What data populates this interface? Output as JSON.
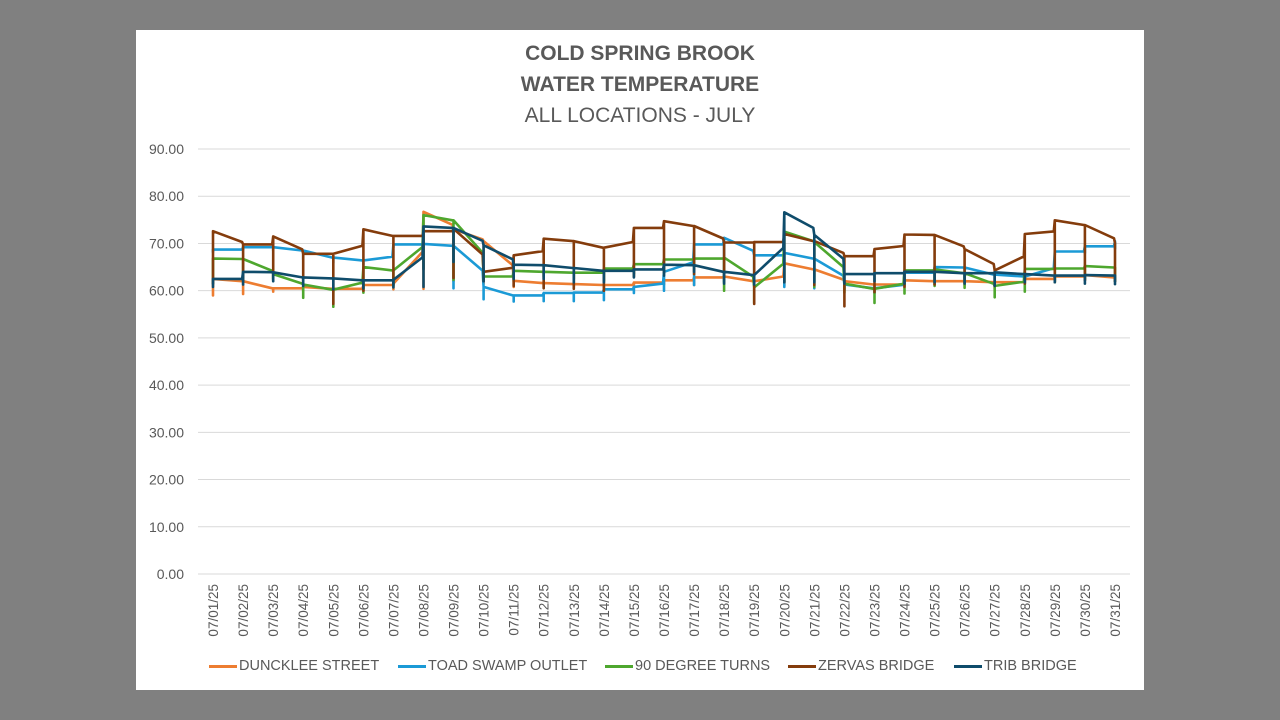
{
  "chart_data": {
    "type": "line",
    "title": "COLD SPRING BROOK",
    "subtitle": "WATER TEMPERATURE",
    "subtitle2": "ALL LOCATIONS - JULY",
    "xlabel": "",
    "ylabel": "",
    "ylim": [
      0,
      90
    ],
    "yticks": [
      "0.00",
      "10.00",
      "20.00",
      "30.00",
      "40.00",
      "50.00",
      "60.00",
      "70.00",
      "80.00",
      "90.00"
    ],
    "grid": true,
    "legend_position": "bottom",
    "categories": [
      "07/01/25",
      "07/02/25",
      "07/03/25",
      "07/04/25",
      "07/05/25",
      "07/06/25",
      "07/07/25",
      "07/08/25",
      "07/09/25",
      "07/10/25",
      "07/11/25",
      "07/12/25",
      "07/13/25",
      "07/14/25",
      "07/15/25",
      "07/16/25",
      "07/17/25",
      "07/18/25",
      "07/19/25",
      "07/20/25",
      "07/21/25",
      "07/22/25",
      "07/23/25",
      "07/24/25",
      "07/25/25",
      "07/26/25",
      "07/27/25",
      "07/28/25",
      "07/29/25",
      "07/30/25",
      "07/31/25"
    ],
    "series": [
      {
        "name": "DUNCKLEE STREET",
        "color": "#ED7D31",
        "min": [
          59.0,
          59.3,
          59.8,
          60.0,
          59.7,
          60.1,
          60.3,
          60.4,
          62.0,
          61.5,
          60.8,
          60.7,
          60.8,
          60.6,
          61.0,
          61.3,
          61.2,
          62.0,
          61.0,
          61.1,
          63.0,
          60.4,
          60.5,
          61.2,
          61.3,
          61.2,
          60.5,
          61.5,
          61.8,
          62.2,
          62.0
        ],
        "max": [
          62.5,
          62.0,
          60.5,
          60.8,
          60.4,
          61.2,
          61.5,
          76.7,
          73.0,
          70.5,
          62.1,
          61.6,
          61.4,
          61.2,
          61.7,
          62.2,
          62.8,
          63.0,
          62.0,
          65.8,
          64.5,
          62.0,
          61.3,
          62.2,
          62.0,
          62.0,
          61.8,
          62.5,
          63.0,
          63.3,
          62.8
        ]
      },
      {
        "name": "TOAD SWAMP OUTLET",
        "color": "#1B9AD6",
        "min": [
          68.2,
          68.8,
          68.5,
          66.6,
          65.9,
          65.5,
          69.2,
          69.2,
          60.5,
          58.2,
          57.7,
          57.8,
          57.8,
          58.0,
          59.5,
          60.0,
          61.2,
          61.8,
          61.8,
          60.8,
          60.5,
          60.2,
          59.5,
          62.0,
          63.8,
          62.6,
          61.7,
          62.3,
          67.6,
          68.0,
          68.9
        ],
        "max": [
          68.7,
          69.2,
          69.2,
          68.5,
          67.0,
          66.4,
          69.8,
          69.9,
          69.5,
          60.8,
          59.0,
          59.5,
          59.6,
          60.3,
          60.8,
          64.0,
          69.8,
          71.2,
          67.5,
          68.0,
          66.8,
          61.3,
          60.5,
          63.8,
          65.0,
          64.9,
          63.4,
          63.0,
          68.3,
          69.4,
          70.5
        ]
      },
      {
        "name": "90 DEGREE TURNS",
        "color": "#4EA72E",
        "min": [
          61.5,
          62.0,
          62.2,
          58.5,
          56.6,
          59.6,
          61.0,
          64.8,
          62.3,
          62.2,
          62.0,
          63.0,
          62.5,
          62.2,
          63.6,
          64.4,
          65.8,
          60.0,
          57.4,
          61.8,
          60.8,
          59.6,
          57.4,
          59.4,
          61.0,
          60.6,
          58.6,
          59.8,
          61.8,
          62.5,
          62.0
        ],
        "max": [
          66.8,
          66.7,
          63.5,
          61.3,
          60.2,
          65.0,
          64.3,
          76.0,
          74.9,
          63.0,
          64.2,
          64.0,
          63.8,
          64.7,
          65.6,
          66.6,
          66.8,
          67.0,
          60.7,
          72.5,
          70.3,
          61.5,
          60.4,
          64.3,
          64.5,
          63.7,
          61.0,
          64.6,
          64.7,
          65.2,
          64.9
        ]
      },
      {
        "name": "ZERVAS BRIDGE",
        "color": "#843C0C",
        "min": [
          61.5,
          62.2,
          62.5,
          61.3,
          57.2,
          60.0,
          61.3,
          64.5,
          62.7,
          62.0,
          61.0,
          60.5,
          60.4,
          60.0,
          63.0,
          63.8,
          63.5,
          63.0,
          57.2,
          61.8,
          61.2,
          56.7,
          59.7,
          60.8,
          61.3,
          61.7,
          61.0,
          61.5,
          62.0,
          62.2,
          62.0
        ],
        "max": [
          72.6,
          69.8,
          71.5,
          67.8,
          67.8,
          73.0,
          71.6,
          72.6,
          73.1,
          64.0,
          67.5,
          71.0,
          70.5,
          69.1,
          73.3,
          74.7,
          73.7,
          70.2,
          70.3,
          72.0,
          70.5,
          67.3,
          68.8,
          71.9,
          71.8,
          68.8,
          64.3,
          72.0,
          74.9,
          73.9,
          70.1
        ]
      },
      {
        "name": "TRIB BRIDGE",
        "color": "#0F4C6B",
        "min": [
          60.8,
          61.3,
          62.0,
          61.0,
          60.3,
          60.5,
          60.7,
          60.8,
          66.1,
          62.0,
          62.5,
          62.5,
          61.8,
          61.8,
          62.8,
          63.2,
          64.0,
          61.5,
          61.3,
          61.8,
          61.8,
          61.5,
          62.0,
          61.5,
          61.8,
          61.5,
          61.0,
          61.8,
          61.8,
          61.5,
          61.4
        ],
        "max": [
          62.5,
          64.0,
          63.9,
          62.8,
          62.6,
          62.2,
          62.3,
          73.6,
          73.3,
          69.6,
          65.5,
          65.4,
          64.8,
          64.2,
          64.5,
          65.5,
          65.4,
          64.0,
          63.3,
          76.6,
          71.8,
          63.5,
          63.7,
          64.0,
          64.0,
          63.7,
          63.9,
          63.5,
          63.2,
          63.3,
          63.2
        ]
      }
    ]
  }
}
